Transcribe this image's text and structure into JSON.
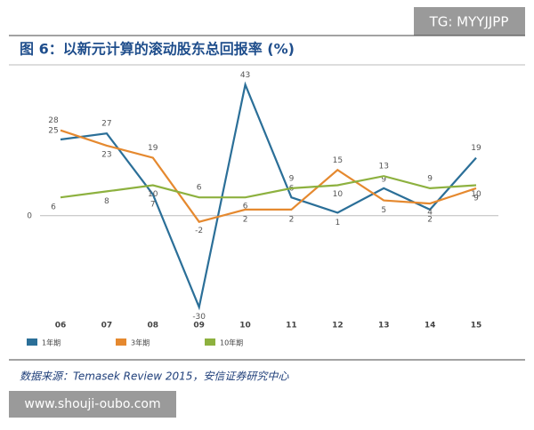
{
  "watermark_top": "TG: MYYJJPP",
  "watermark_bottom": "www.shouji-oubo.com",
  "source": "数据来源：Temasek Review 2015，安信证券研究中心",
  "chart_data": {
    "type": "line",
    "title": "图 6：以新元计算的滚动股东总回报率 (%)",
    "categories": [
      "06",
      "07",
      "08",
      "09",
      "10",
      "11",
      "12",
      "13",
      "14",
      "15"
    ],
    "series": [
      {
        "name": "1年期",
        "color": "#2b6f98",
        "values": [
          25,
          27,
          7,
          -30,
          43,
          6,
          1,
          9,
          2,
          19
        ]
      },
      {
        "name": "3年期",
        "color": "#e5892f",
        "values": [
          28,
          23,
          19,
          -2,
          2,
          2,
          15,
          5,
          4,
          9
        ]
      },
      {
        "name": "10年期",
        "color": "#8db13f",
        "values": [
          6,
          8,
          10,
          6,
          6,
          9,
          10,
          13,
          9,
          10
        ]
      }
    ],
    "ylim": [
      -33,
      46
    ],
    "yticks": [
      0
    ]
  }
}
